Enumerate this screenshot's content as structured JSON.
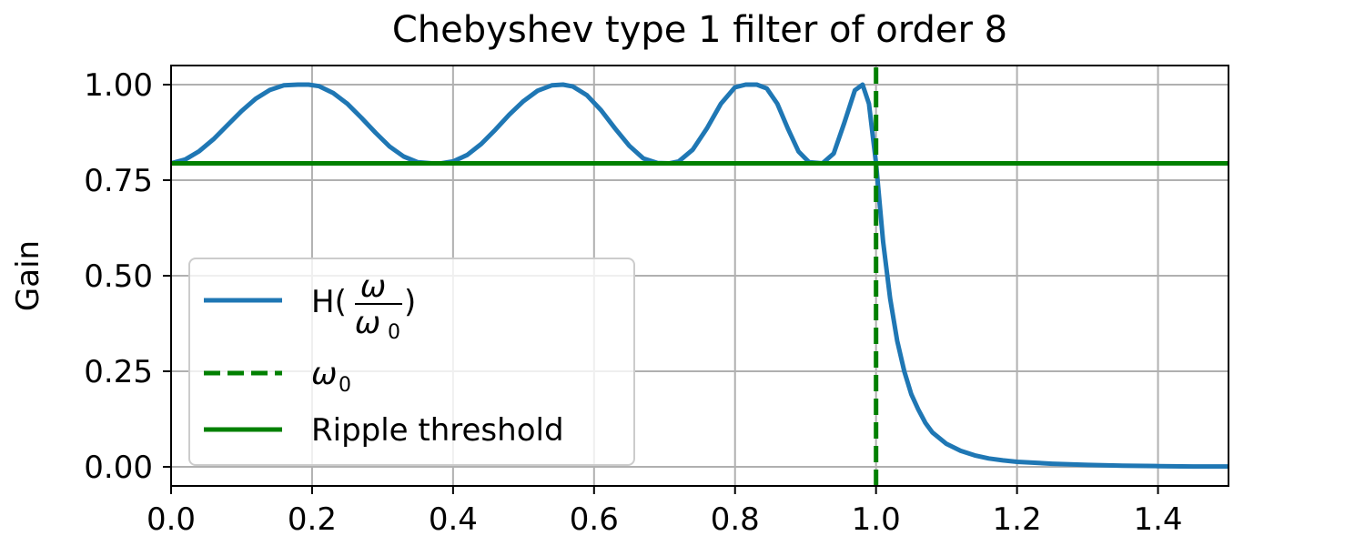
{
  "chart_data": {
    "type": "line",
    "title": "Chebyshev type 1 filter of order 8",
    "xlabel": "",
    "ylabel": "Gain",
    "xlim": [
      0.0,
      1.5
    ],
    "ylim": [
      -0.05,
      1.05
    ],
    "x_ticks": [
      "0.0",
      "0.2",
      "0.4",
      "0.6",
      "0.8",
      "1.0",
      "1.2",
      "1.4"
    ],
    "y_ticks": [
      "0.00",
      "0.25",
      "0.50",
      "0.75",
      "1.00"
    ],
    "grid": true,
    "legend_position": "lower-left",
    "series": [
      {
        "name": "H(ω/ω0)",
        "style": "solid",
        "color": "#1f77b4",
        "x": [
          0.0,
          0.02,
          0.04,
          0.06,
          0.08,
          0.1,
          0.12,
          0.14,
          0.16,
          0.18,
          0.195,
          0.21,
          0.23,
          0.25,
          0.27,
          0.29,
          0.31,
          0.33,
          0.35,
          0.37,
          0.383,
          0.4,
          0.42,
          0.44,
          0.46,
          0.48,
          0.5,
          0.52,
          0.54,
          0.556,
          0.57,
          0.59,
          0.61,
          0.63,
          0.65,
          0.67,
          0.69,
          0.707,
          0.72,
          0.74,
          0.76,
          0.78,
          0.8,
          0.815,
          0.831,
          0.845,
          0.86,
          0.875,
          0.89,
          0.905,
          0.924,
          0.94,
          0.955,
          0.97,
          0.981,
          0.99,
          1.0,
          1.01,
          1.02,
          1.03,
          1.04,
          1.05,
          1.06,
          1.07,
          1.08,
          1.1,
          1.12,
          1.14,
          1.16,
          1.18,
          1.2,
          1.25,
          1.3,
          1.35,
          1.4,
          1.45,
          1.5
        ],
        "y": [
          0.794,
          0.804,
          0.826,
          0.857,
          0.894,
          0.931,
          0.963,
          0.986,
          0.998,
          1.0,
          1.0,
          0.996,
          0.978,
          0.95,
          0.913,
          0.874,
          0.838,
          0.812,
          0.797,
          0.794,
          0.794,
          0.799,
          0.816,
          0.845,
          0.882,
          0.922,
          0.957,
          0.984,
          0.998,
          1.0,
          0.995,
          0.972,
          0.933,
          0.885,
          0.84,
          0.807,
          0.795,
          0.794,
          0.799,
          0.83,
          0.885,
          0.95,
          0.993,
          1.0,
          1.0,
          0.99,
          0.95,
          0.885,
          0.825,
          0.797,
          0.794,
          0.82,
          0.9,
          0.985,
          1.0,
          0.95,
          0.794,
          0.59,
          0.44,
          0.33,
          0.25,
          0.19,
          0.15,
          0.115,
          0.09,
          0.06,
          0.042,
          0.03,
          0.022,
          0.017,
          0.013,
          0.008,
          0.005,
          0.003,
          0.002,
          0.001,
          0.001
        ]
      },
      {
        "name": "ω0",
        "style": "dashed",
        "color": "#008000",
        "x": [
          1.0,
          1.0
        ],
        "y": [
          -0.05,
          1.05
        ]
      },
      {
        "name": "Ripple threshold",
        "style": "solid",
        "color": "#008000",
        "x": [
          0.0,
          1.5
        ],
        "y": [
          0.794,
          0.794
        ]
      }
    ],
    "legend": {
      "h_prefix": "H(",
      "h_num": "ω",
      "h_den": "ω",
      "h_den_sub": "0",
      "h_suffix": ")",
      "omega": "ω",
      "omega_sub": "0",
      "ripple": "Ripple threshold"
    }
  }
}
